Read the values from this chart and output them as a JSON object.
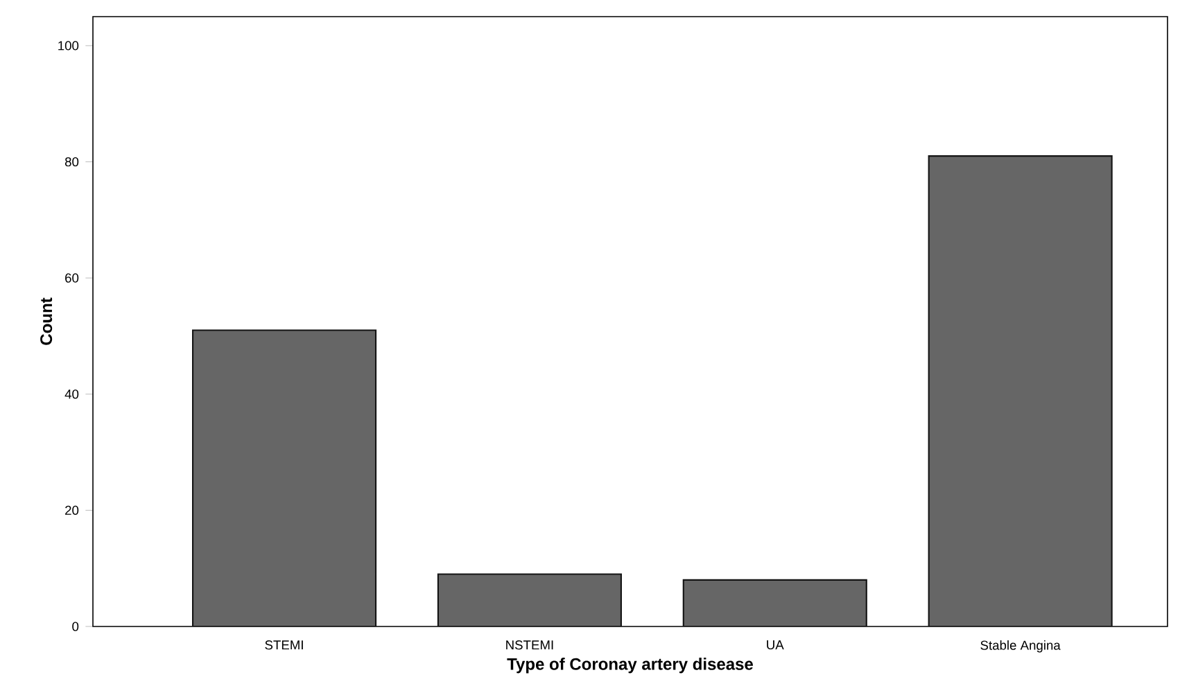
{
  "chart_data": {
    "type": "bar",
    "xlabel": "Type of Coronay artery disease",
    "ylabel": "Count",
    "categories": [
      "STEMI",
      "NSTEMI",
      "UA",
      "Stable Angina"
    ],
    "values": [
      51,
      9,
      8,
      81
    ],
    "color": "#666666",
    "ylim": [
      0,
      105
    ],
    "yticks": [
      0,
      20,
      40,
      60,
      80,
      100
    ],
    "grid": false
  }
}
